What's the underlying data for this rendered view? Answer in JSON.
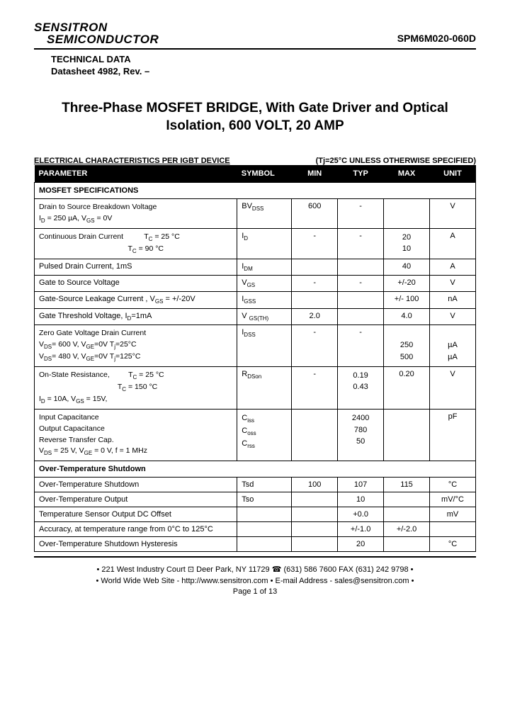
{
  "brand_line1": "SENSITRON",
  "brand_line2": "SEMICONDUCTOR",
  "part_number": "SPM6M020-060D",
  "tech_label": "TECHNICAL DATA",
  "datasheet": "Datasheet 4982, Rev. –",
  "title": "Three-Phase MOSFET BRIDGE, With Gate Driver and Optical Isolation, 600 VOLT, 20 AMP",
  "spec_header_left": "ELECTRICAL CHARACTERISTICS PER IGBT DEVICE",
  "spec_header_right": "(Tj=25°C UNLESS OTHERWISE SPECIFIED)",
  "cols": {
    "param": "PARAMETER",
    "symbol": "SYMBOL",
    "min": "MIN",
    "typ": "TYP",
    "max": "MAX",
    "unit": "UNIT"
  },
  "section_mosfet": "MOSFET SPECIFICATIONS",
  "section_ot": "Over-Temperature Shutdown",
  "rows": {
    "r1": {
      "param_l1": "Drain to Source Breakdown Voltage",
      "param_l2": "I",
      "param_l2b": " = 250 µA, V",
      "param_l2c": " = 0V",
      "sym": "BV",
      "symsub": "DSS",
      "min": "600",
      "typ": "-",
      "max": "",
      "unit": "V"
    },
    "r2": {
      "param_l1": "Continuous Drain Current",
      "cond1": "T",
      "cond1b": " = 25 °C",
      "cond2": "T",
      "cond2b": " = 90 °C",
      "sym": "I",
      "symsub": "D",
      "min": "-",
      "typ": "-",
      "max1": "20",
      "max2": "10",
      "unit": "A"
    },
    "r3": {
      "param": "Pulsed Drain Current, 1mS",
      "sym": "I",
      "symsub": "DM",
      "min": "",
      "typ": "",
      "max": "40",
      "unit": "A"
    },
    "r4": {
      "param": "Gate to Source Voltage",
      "sym": "V",
      "symsub": "GS",
      "min": "-",
      "typ": "-",
      "max": "+/-20",
      "unit": "V"
    },
    "r5": {
      "param_a": "Gate-Source Leakage Current , V",
      "param_b": " = +/-20V",
      "sym": "I",
      "symsub": "GSS",
      "min": "",
      "typ": "",
      "max": "+/- 100",
      "unit": "nA"
    },
    "r6": {
      "param_a": "Gate Threshold Voltage, I",
      "param_b": "=1mA",
      "sym": "V ",
      "symsub": "GS(TH)",
      "min": "2.0",
      "typ": "",
      "max": "4.0",
      "unit": "V"
    },
    "r7": {
      "param_l1": "Zero Gate Voltage Drain Current",
      "cond1": "V",
      "cond1b": "= 600 V,   V",
      "cond1c": "=0V  T",
      "cond1d": "=25°C",
      "cond2": "V",
      "cond2b": "= 480 V,   V",
      "cond2c": "=0V  T",
      "cond2d": "=125°C",
      "sym": "I",
      "symsub": "DSS",
      "min": "-",
      "typ": "-",
      "max1": "250",
      "max2": "500",
      "unit1": "µA",
      "unit2": "µA"
    },
    "r8": {
      "param_l1": "On-State Resistance,",
      "cond1": "T",
      "cond1b": " = 25 °C",
      "cond2": "T",
      "cond2b": " = 150 °C",
      "cond3": "I",
      "cond3b": " = 10A, V",
      "cond3c": " = 15V,",
      "sym": "R",
      "symsub": "DSon",
      "min": "-",
      "typ1": "0.19",
      "typ2": "0.43",
      "max": "0.20",
      "unit": "V"
    },
    "r9": {
      "l1": "Input Capacitance",
      "l2": "Output Capacitance",
      "l3": "Reverse Transfer Cap.",
      "cond": "V",
      "condb": " = 25 V, V",
      "condc": " = 0 V,  f = 1 MHz",
      "s1": "C",
      "s1s": "iss",
      "s2": "C",
      "s2s": "oss",
      "s3": "C",
      "s3s": "rss",
      "t1": "2400",
      "t2": "780",
      "t3": "50",
      "unit": "pF"
    },
    "ot1": {
      "param": "Over-Temperature Shutdown",
      "sym": "Tsd",
      "min": "100",
      "typ": "107",
      "max": "115",
      "unit": "°C"
    },
    "ot2": {
      "param": "Over-Temperature Output",
      "sym": "Tso",
      "min": "",
      "typ": "10",
      "max": "",
      "unit": "mV/°C"
    },
    "ot3": {
      "param": "Temperature Sensor Output DC Offset",
      "sym": "",
      "min": "",
      "typ": "+0.0",
      "max": "",
      "unit": "mV"
    },
    "ot4": {
      "param": "Accuracy, at temperature range from  0°C to 125°C",
      "sym": "",
      "min": "",
      "typ": "+/-1.0",
      "max": "+/-2.0",
      "unit": ""
    },
    "ot5": {
      "param": "Over-Temperature Shutdown Hysteresis",
      "sym": "",
      "min": "",
      "typ": "20",
      "max": "",
      "unit": "°C"
    }
  },
  "footer_l1": "• 221 West Industry Court  ⊡  Deer Park, NY  11729  ☎ (631) 586 7600  FAX (631) 242 9798 •",
  "footer_l2": "• World Wide Web Site - http://www.sensitron.com • E-mail Address - sales@sensitron.com •",
  "page": "Page 1 of 13"
}
